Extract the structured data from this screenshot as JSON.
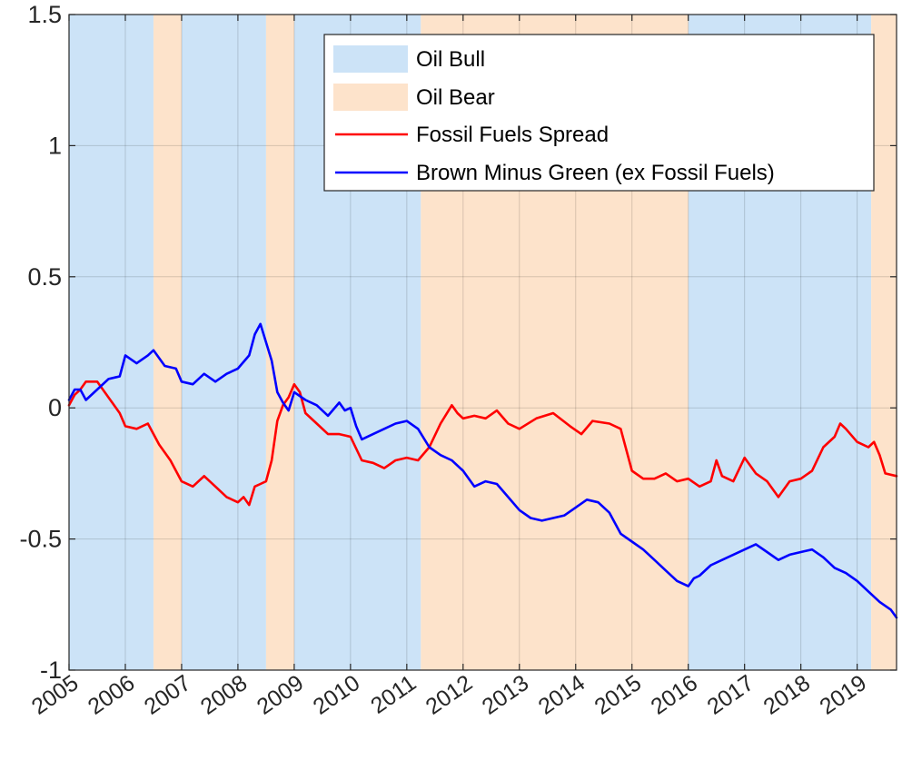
{
  "chart_data": {
    "type": "line",
    "title": "",
    "xlabel": "",
    "ylabel": "",
    "xlim": [
      2005.0,
      2019.7
    ],
    "ylim": [
      -1,
      1.5
    ],
    "grid": true,
    "yticks": [
      1.5,
      1,
      0.5,
      0,
      -0.5,
      -1
    ],
    "ytick_labels": [
      "1.5",
      "1",
      "0.5",
      "0",
      "-0.5",
      "-1"
    ],
    "xtick_labels": [
      "2005",
      "2006",
      "2007",
      "2008",
      "2009",
      "2010",
      "2011",
      "2012",
      "2013",
      "2014",
      "2015",
      "2016",
      "2017",
      "2018",
      "2019"
    ],
    "legend_position": "top-right",
    "regimes": [
      {
        "name": "Oil Bull",
        "color": "#cce3f7",
        "periods": [
          [
            2005.0,
            2006.5
          ],
          [
            2007.0,
            2008.5
          ],
          [
            2009.0,
            2011.25
          ],
          [
            2016.0,
            2019.25
          ]
        ]
      },
      {
        "name": "Oil Bear",
        "color": "#fde3cb",
        "periods": [
          [
            2006.5,
            2007.0
          ],
          [
            2008.5,
            2009.0
          ],
          [
            2011.25,
            2016.0
          ],
          [
            2019.25,
            2019.7
          ]
        ]
      }
    ],
    "series": [
      {
        "name": "Fossil Fuels Spread",
        "color": "#ff0000",
        "x": [
          2005.0,
          2005.1,
          2005.2,
          2005.3,
          2005.5,
          2005.7,
          2005.9,
          2006.0,
          2006.2,
          2006.4,
          2006.6,
          2006.8,
          2007.0,
          2007.2,
          2007.4,
          2007.6,
          2007.8,
          2008.0,
          2008.1,
          2008.2,
          2008.3,
          2008.4,
          2008.5,
          2008.6,
          2008.7,
          2008.8,
          2008.9,
          2009.0,
          2009.1,
          2009.2,
          2009.4,
          2009.6,
          2009.8,
          2010.0,
          2010.2,
          2010.4,
          2010.6,
          2010.8,
          2011.0,
          2011.2,
          2011.4,
          2011.6,
          2011.8,
          2011.9,
          2012.0,
          2012.2,
          2012.4,
          2012.6,
          2012.8,
          2013.0,
          2013.3,
          2013.6,
          2013.9,
          2014.1,
          2014.3,
          2014.6,
          2014.8,
          2015.0,
          2015.2,
          2015.4,
          2015.6,
          2015.8,
          2016.0,
          2016.2,
          2016.4,
          2016.5,
          2016.6,
          2016.8,
          2017.0,
          2017.2,
          2017.4,
          2017.6,
          2017.8,
          2018.0,
          2018.2,
          2018.4,
          2018.6,
          2018.7,
          2018.8,
          2019.0,
          2019.2,
          2019.3,
          2019.4,
          2019.5,
          2019.7
        ],
        "values": [
          0.01,
          0.05,
          0.07,
          0.1,
          0.1,
          0.04,
          -0.02,
          -0.07,
          -0.08,
          -0.06,
          -0.14,
          -0.2,
          -0.28,
          -0.3,
          -0.26,
          -0.3,
          -0.34,
          -0.36,
          -0.34,
          -0.37,
          -0.3,
          -0.29,
          -0.28,
          -0.2,
          -0.05,
          0.01,
          0.04,
          0.09,
          0.06,
          -0.02,
          -0.06,
          -0.1,
          -0.1,
          -0.11,
          -0.2,
          -0.21,
          -0.23,
          -0.2,
          -0.19,
          -0.2,
          -0.15,
          -0.06,
          0.01,
          -0.02,
          -0.04,
          -0.03,
          -0.04,
          -0.01,
          -0.06,
          -0.08,
          -0.04,
          -0.02,
          -0.07,
          -0.1,
          -0.05,
          -0.06,
          -0.08,
          -0.24,
          -0.27,
          -0.27,
          -0.25,
          -0.28,
          -0.27,
          -0.3,
          -0.28,
          -0.2,
          -0.26,
          -0.28,
          -0.19,
          -0.25,
          -0.28,
          -0.34,
          -0.28,
          -0.27,
          -0.24,
          -0.15,
          -0.11,
          -0.06,
          -0.08,
          -0.13,
          -0.15,
          -0.13,
          -0.18,
          -0.25,
          -0.26
        ]
      },
      {
        "name": "Brown Minus Green (ex Fossil Fuels)",
        "color": "#0000ff",
        "x": [
          2005.0,
          2005.1,
          2005.2,
          2005.3,
          2005.5,
          2005.7,
          2005.9,
          2006.0,
          2006.2,
          2006.4,
          2006.5,
          2006.7,
          2006.9,
          2007.0,
          2007.2,
          2007.4,
          2007.6,
          2007.8,
          2008.0,
          2008.2,
          2008.3,
          2008.4,
          2008.5,
          2008.6,
          2008.7,
          2008.8,
          2008.9,
          2009.0,
          2009.2,
          2009.4,
          2009.6,
          2009.8,
          2009.9,
          2010.0,
          2010.1,
          2010.2,
          2010.4,
          2010.6,
          2010.8,
          2011.0,
          2011.2,
          2011.4,
          2011.6,
          2011.8,
          2012.0,
          2012.2,
          2012.4,
          2012.6,
          2012.8,
          2013.0,
          2013.2,
          2013.4,
          2013.6,
          2013.8,
          2014.0,
          2014.2,
          2014.4,
          2014.6,
          2014.8,
          2015.0,
          2015.2,
          2015.4,
          2015.6,
          2015.8,
          2016.0,
          2016.1,
          2016.2,
          2016.4,
          2016.6,
          2016.8,
          2017.0,
          2017.2,
          2017.4,
          2017.6,
          2017.8,
          2018.0,
          2018.2,
          2018.4,
          2018.6,
          2018.8,
          2019.0,
          2019.2,
          2019.4,
          2019.6,
          2019.7
        ],
        "values": [
          0.03,
          0.07,
          0.07,
          0.03,
          0.07,
          0.11,
          0.12,
          0.2,
          0.17,
          0.2,
          0.22,
          0.16,
          0.15,
          0.1,
          0.09,
          0.13,
          0.1,
          0.13,
          0.15,
          0.2,
          0.28,
          0.32,
          0.25,
          0.18,
          0.06,
          0.02,
          -0.01,
          0.06,
          0.03,
          0.01,
          -0.03,
          0.02,
          -0.01,
          0.0,
          -0.07,
          -0.12,
          -0.1,
          -0.08,
          -0.06,
          -0.05,
          -0.08,
          -0.15,
          -0.18,
          -0.2,
          -0.24,
          -0.3,
          -0.28,
          -0.29,
          -0.34,
          -0.39,
          -0.42,
          -0.43,
          -0.42,
          -0.41,
          -0.38,
          -0.35,
          -0.36,
          -0.4,
          -0.48,
          -0.51,
          -0.54,
          -0.58,
          -0.62,
          -0.66,
          -0.68,
          -0.65,
          -0.64,
          -0.6,
          -0.58,
          -0.56,
          -0.54,
          -0.52,
          -0.55,
          -0.58,
          -0.56,
          -0.55,
          -0.54,
          -0.57,
          -0.61,
          -0.63,
          -0.66,
          -0.7,
          -0.74,
          -0.77,
          -0.8
        ]
      }
    ],
    "legend": [
      {
        "label": "Oil Bull",
        "kind": "patch",
        "color": "#cce3f7"
      },
      {
        "label": "Oil Bear",
        "kind": "patch",
        "color": "#fde3cb"
      },
      {
        "label": "Fossil Fuels Spread",
        "kind": "line",
        "color": "#ff0000"
      },
      {
        "label": "Brown Minus Green (ex Fossil Fuels)",
        "kind": "line",
        "color": "#0000ff"
      }
    ]
  }
}
